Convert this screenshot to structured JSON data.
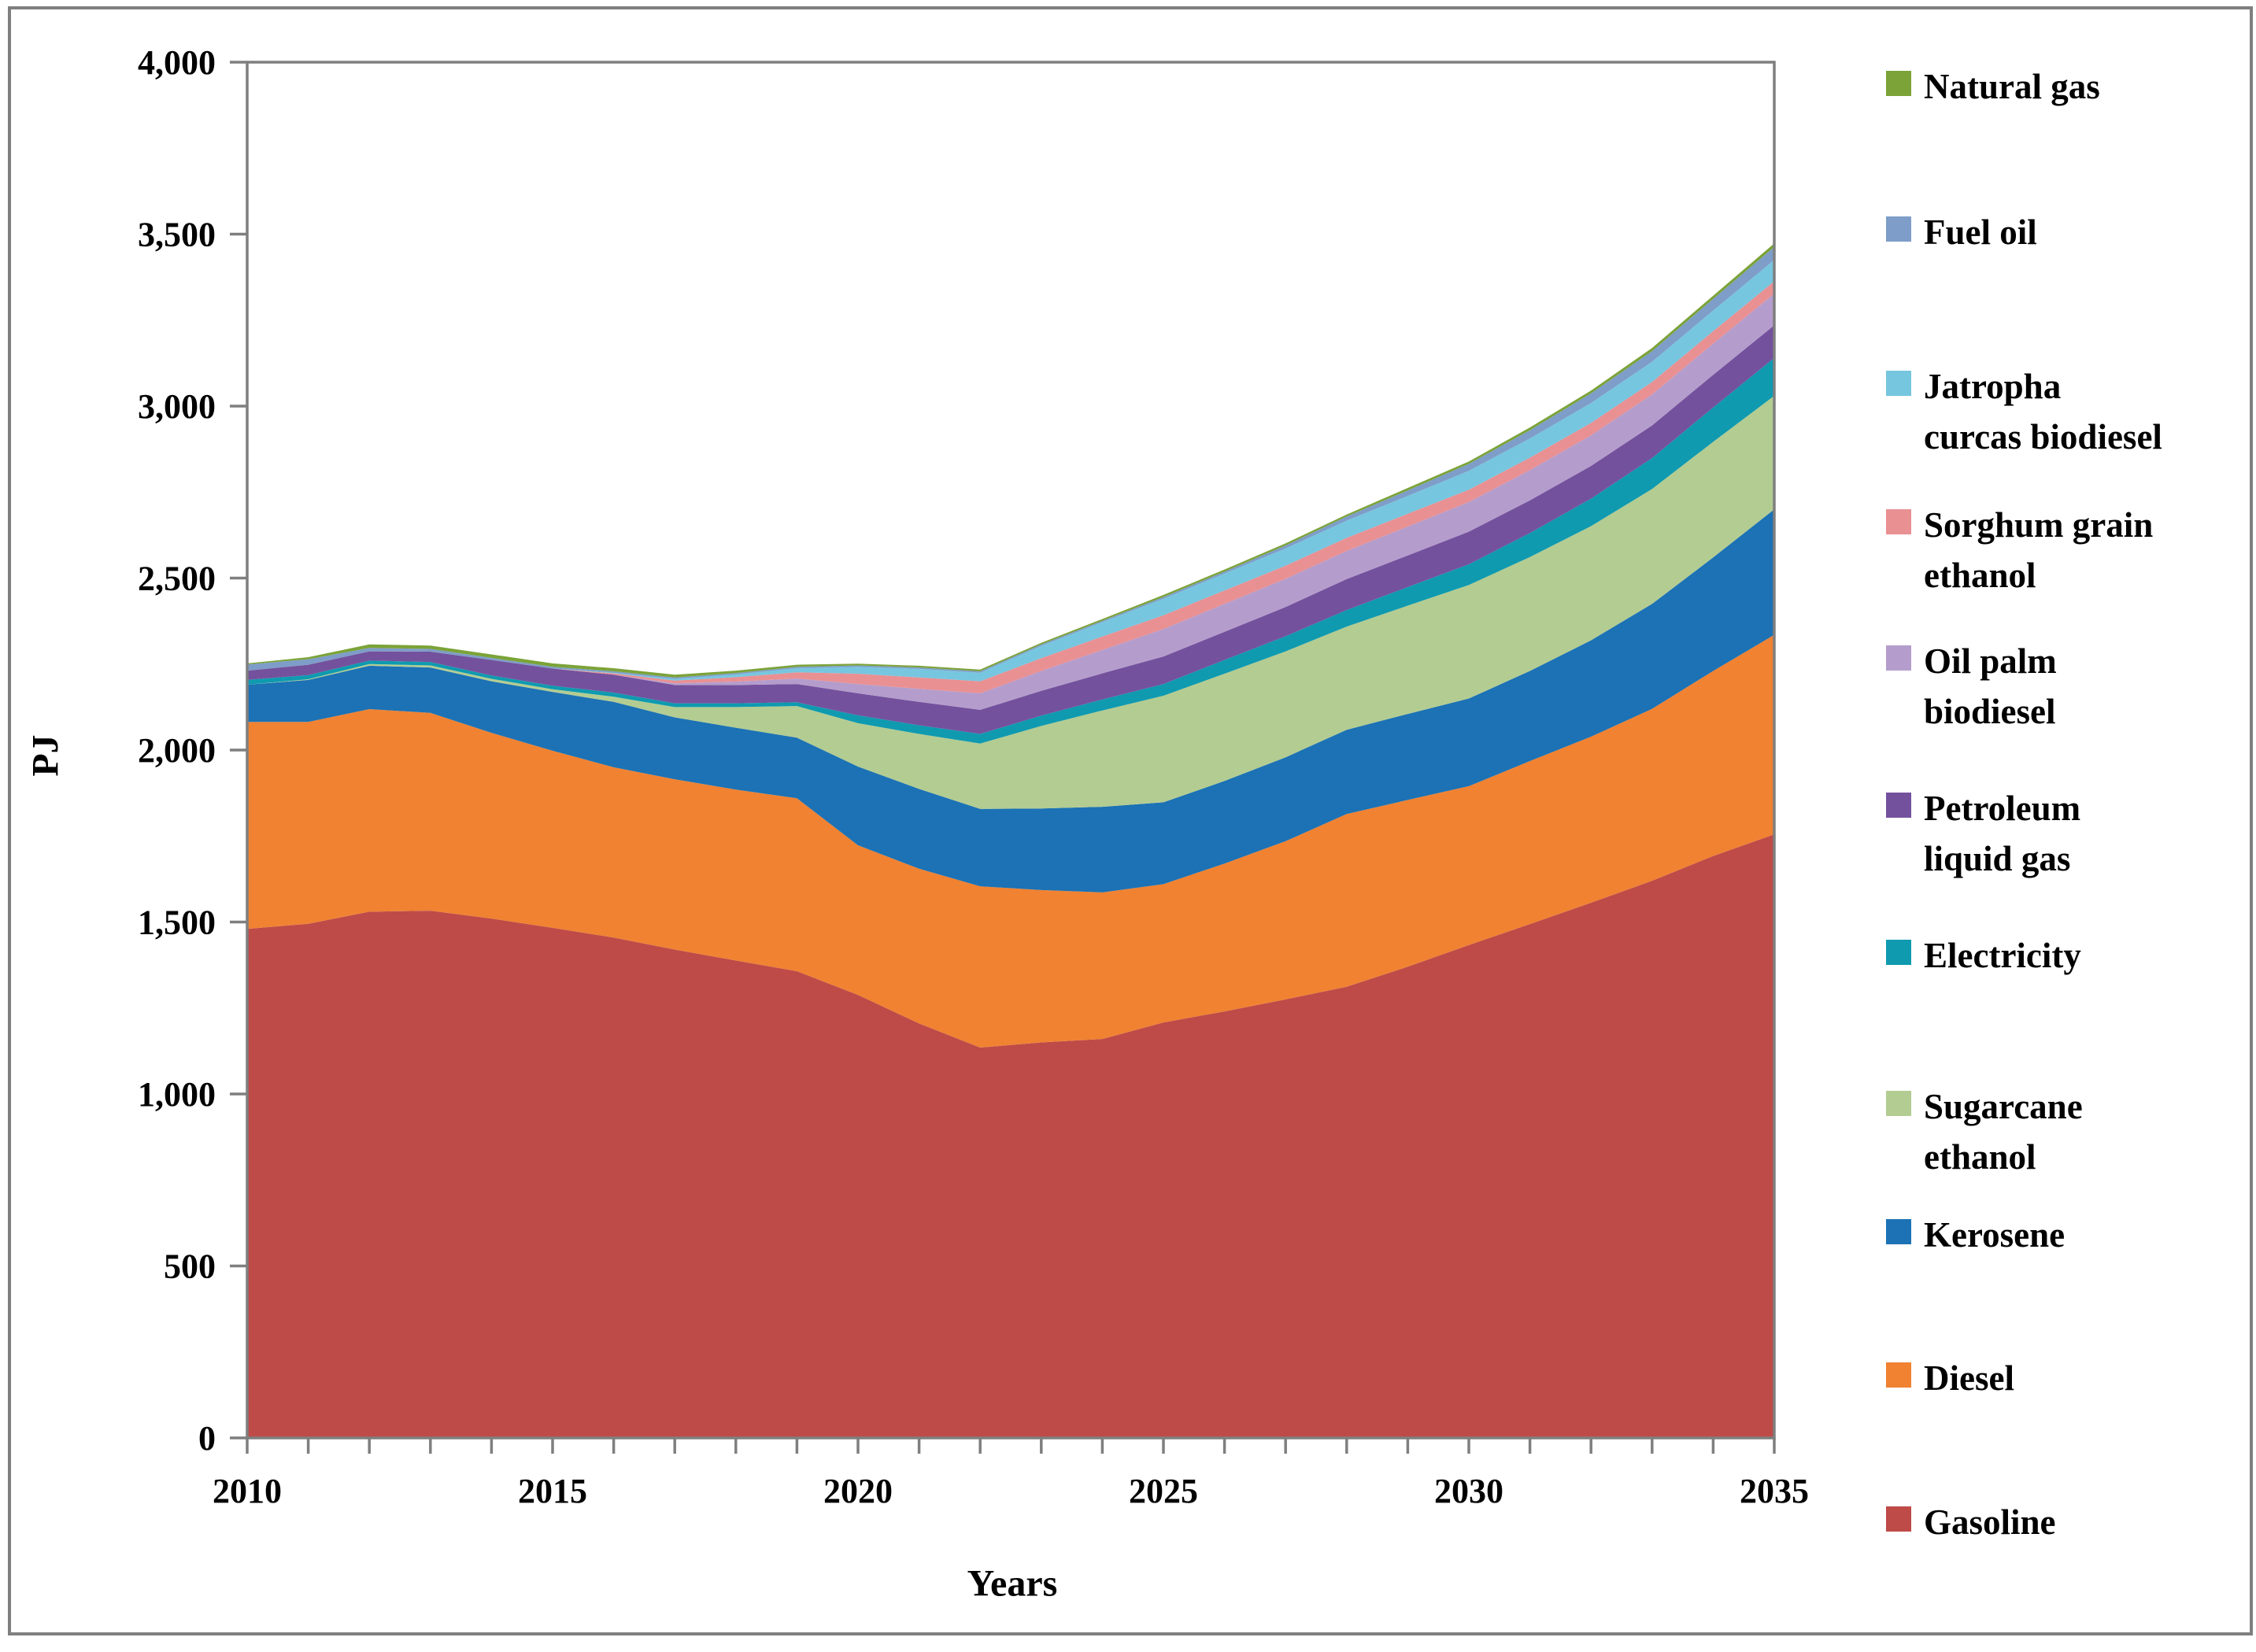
{
  "figure": {
    "background": "#ffffff",
    "border_color": "#7f7f7f"
  },
  "axes": {
    "y": {
      "label": "PJ",
      "min": 0,
      "max": 4000,
      "tick_step": 500,
      "tick_labels": [
        "0",
        "500",
        "1,000",
        "1,500",
        "2,000",
        "2,500",
        "3,000",
        "3,500",
        "4,000"
      ]
    },
    "x": {
      "label": "Years",
      "min": 2010,
      "max": 2035,
      "labeled_ticks": [
        2010,
        2015,
        2020,
        2025,
        2030,
        2035
      ],
      "minor_tick_every_years": 1
    }
  },
  "chart_data": {
    "type": "area",
    "stacked": true,
    "title": "",
    "xlabel": "Years",
    "ylabel": "PJ",
    "ylim": [
      0,
      4000
    ],
    "grid": false,
    "legend_position": "right",
    "x": [
      2010,
      2011,
      2012,
      2013,
      2014,
      2015,
      2016,
      2017,
      2018,
      2019,
      2020,
      2021,
      2022,
      2023,
      2024,
      2025,
      2026,
      2027,
      2028,
      2029,
      2030,
      2031,
      2032,
      2033,
      2034,
      2035
    ],
    "series_note": "series listed bottom-to-top of the stack; values in PJ per year",
    "series": [
      {
        "name": "Gasoline",
        "color": "#be4b48",
        "values": [
          1480,
          1495,
          1530,
          1533,
          1510,
          1483,
          1455,
          1420,
          1388,
          1357,
          1288,
          1205,
          1135,
          1150,
          1160,
          1208,
          1240,
          1275,
          1312,
          1370,
          1433,
          1494,
          1556,
          1620,
          1692,
          1755
        ]
      },
      {
        "name": "Diesel",
        "color": "#f08232",
        "values": [
          602,
          587,
          589,
          575,
          540,
          515,
          495,
          495,
          497,
          503,
          435,
          450,
          469,
          443,
          426,
          402,
          430,
          460,
          502,
          485,
          462,
          474,
          483,
          500,
          538,
          580
        ]
      },
      {
        "name": "Kerosene",
        "color": "#1c72b4",
        "values": [
          108,
          122,
          126,
          132,
          150,
          171,
          190,
          180,
          180,
          176,
          229,
          232,
          225,
          237,
          249,
          238,
          240,
          244,
          245,
          250,
          255,
          262,
          280,
          305,
          330,
          365
        ]
      },
      {
        "name": "Sugarcane ethanol",
        "color": "#b3cc92",
        "values": [
          0,
          2,
          5,
          6,
          7,
          8,
          15,
          30,
          60,
          92,
          126,
          160,
          190,
          240,
          280,
          310,
          312,
          308,
          300,
          315,
          330,
          331,
          332,
          334,
          336,
          330
        ]
      },
      {
        "name": "Electricity",
        "color": "#0f9ab0",
        "values": [
          14,
          12,
          10,
          10,
          10,
          10,
          12,
          11,
          11,
          11,
          23,
          25,
          28,
          30,
          32,
          34,
          40,
          44,
          48,
          54,
          60,
          70,
          80,
          90,
          100,
          110
        ]
      },
      {
        "name": "Petroleum liquid gas",
        "color": "#74519d",
        "values": [
          27,
          30,
          27,
          30,
          45,
          50,
          52,
          53,
          53,
          53,
          64,
          68,
          70,
          72,
          76,
          80,
          82,
          85,
          90,
          92,
          95,
          95,
          95,
          95,
          95,
          95
        ]
      },
      {
        "name": "Oil palm biodiesel",
        "color": "#b49dcc",
        "values": [
          0,
          0,
          0,
          0,
          0,
          0,
          0,
          5,
          10,
          16,
          27,
          38,
          48,
          58,
          68,
          80,
          81,
          82,
          82,
          84,
          86,
          88,
          89,
          90,
          91,
          92
        ]
      },
      {
        "name": "Sorghum grain ethanol",
        "color": "#e99093",
        "values": [
          0,
          0,
          0,
          0,
          0,
          0,
          4,
          8,
          13,
          18,
          30,
          33,
          35,
          37,
          39,
          40,
          39,
          38,
          38,
          37,
          36,
          36,
          36,
          36,
          36,
          36
        ]
      },
      {
        "name": "Jatropha curcas biodiesel",
        "color": "#77c6df",
        "values": [
          0,
          0,
          0,
          0,
          0,
          0,
          2,
          5,
          8,
          12,
          20,
          25,
          25,
          36,
          42,
          48,
          49,
          50,
          50,
          52,
          55,
          56,
          58,
          59,
          60,
          62
        ]
      },
      {
        "name": "Fuel oil",
        "color": "#7e9dc8",
        "values": [
          18,
          16,
          10,
          8,
          6,
          5,
          4,
          4,
          4,
          4,
          4,
          4,
          4,
          4,
          4,
          5,
          6,
          9,
          12,
          16,
          20,
          24,
          28,
          31,
          34,
          38
        ]
      },
      {
        "name": "Natural gas",
        "color": "#7ba338",
        "values": [
          3,
          6,
          10,
          10,
          10,
          10,
          9,
          8,
          7,
          6,
          5,
          5,
          5,
          5,
          5,
          6,
          6,
          6,
          6,
          7,
          7,
          8,
          8,
          9,
          9,
          10
        ]
      }
    ]
  },
  "legend": {
    "items": [
      {
        "label": "Natural gas",
        "lines": [
          "Natural gas"
        ],
        "color": "#7ba338"
      },
      {
        "label": "Fuel oil",
        "lines": [
          "Fuel oil"
        ],
        "color": "#7e9dc8"
      },
      {
        "label": "Jatropha curcas biodiesel",
        "lines": [
          "Jatropha",
          "curcas biodiesel"
        ],
        "color": "#77c6df"
      },
      {
        "label": "Sorghum grain ethanol",
        "lines": [
          "Sorghum grain",
          "ethanol"
        ],
        "color": "#e99093"
      },
      {
        "label": "Oil palm biodiesel",
        "lines": [
          "Oil palm",
          "biodiesel"
        ],
        "color": "#b49dcc"
      },
      {
        "label": "Petroleum liquid gas",
        "lines": [
          "Petroleum",
          "liquid gas"
        ],
        "color": "#74519d"
      },
      {
        "label": "Electricity",
        "lines": [
          "Electricity"
        ],
        "color": "#0f9ab0"
      },
      {
        "label": "Sugarcane ethanol",
        "lines": [
          "Sugarcane",
          "ethanol"
        ],
        "color": "#b3cc92"
      },
      {
        "label": "Kerosene",
        "lines": [
          "Kerosene"
        ],
        "color": "#1c72b4"
      },
      {
        "label": "Diesel",
        "lines": [
          "Diesel"
        ],
        "color": "#f08232"
      },
      {
        "label": "Gasoline",
        "lines": [
          "Gasoline"
        ],
        "color": "#be4b48"
      }
    ]
  }
}
